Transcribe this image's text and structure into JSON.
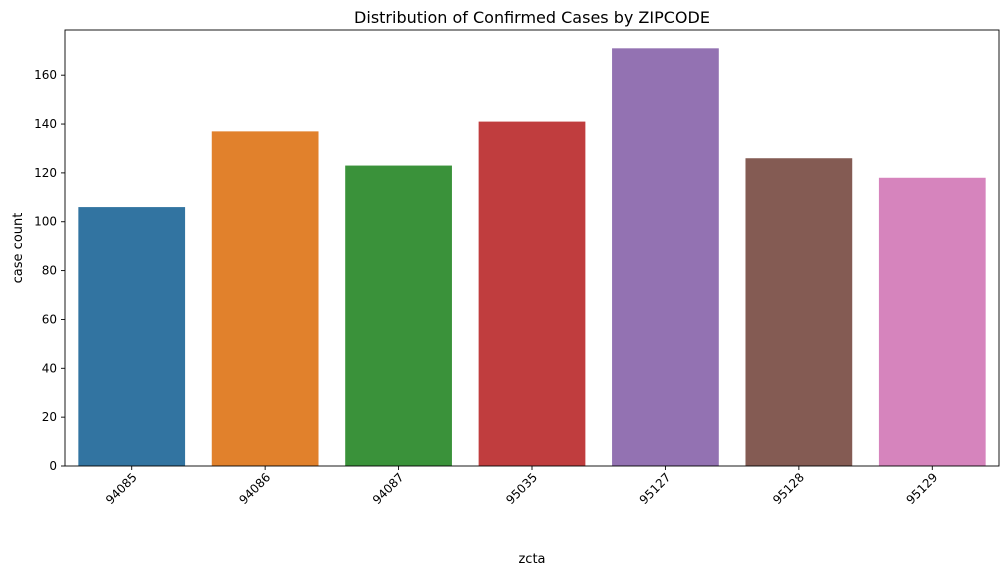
{
  "chart_data": {
    "type": "bar",
    "title": "Distribution of Confirmed Cases by ZIPCODE",
    "xlabel": "zcta",
    "ylabel": "case count",
    "categories": [
      "94085",
      "94086",
      "94087",
      "95035",
      "95127",
      "95128",
      "95129"
    ],
    "values": [
      106,
      137,
      123,
      141,
      171,
      126,
      118
    ],
    "colors": [
      "#3274a1",
      "#e1812c",
      "#3a923a",
      "#c03d3e",
      "#9372b2",
      "#845b53",
      "#d684bd"
    ],
    "ylim": [
      0,
      178.5
    ],
    "yticks": [
      0,
      20,
      40,
      60,
      80,
      100,
      120,
      140,
      160
    ],
    "grid": false,
    "xtick_rotation": 45
  }
}
